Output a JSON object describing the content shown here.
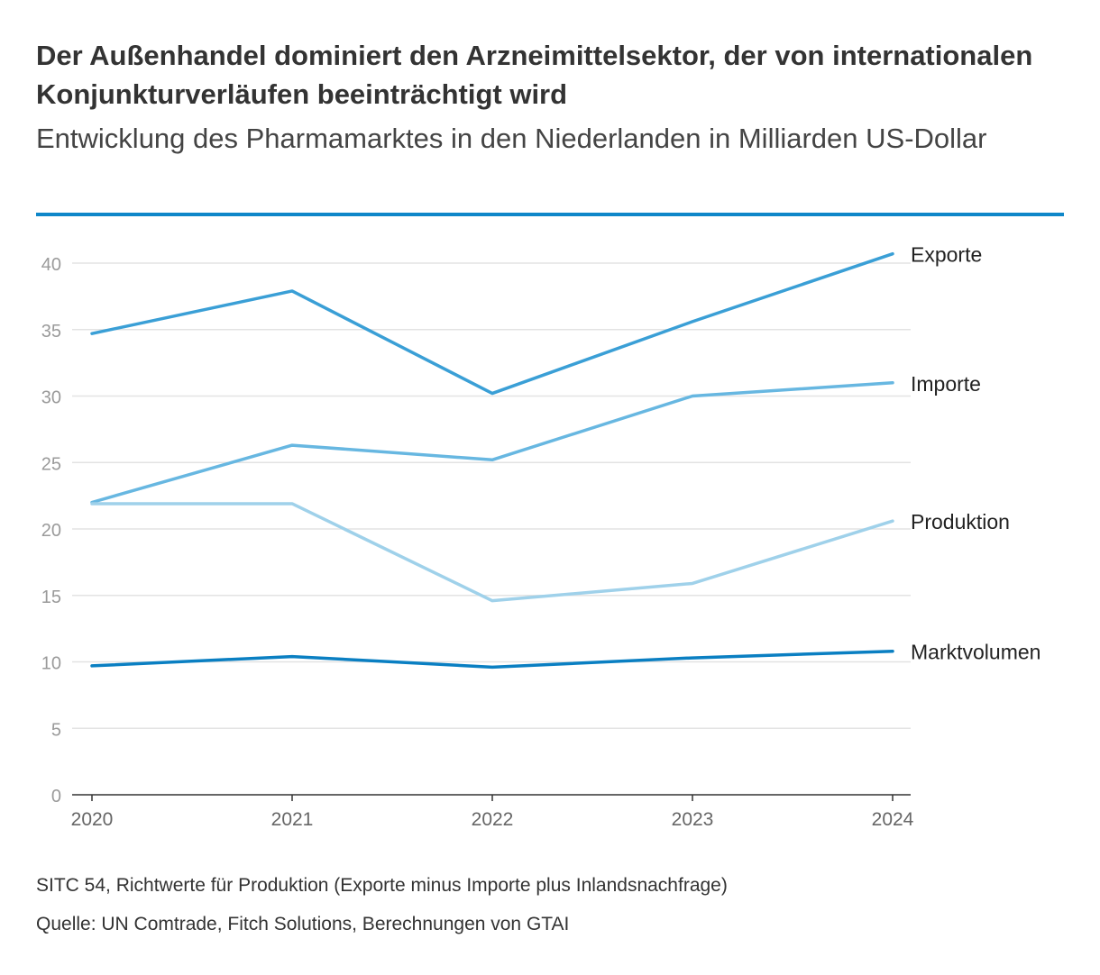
{
  "header": {
    "title": "Der Außenhandel dominiert den Arzneimittelsektor, der von internationalen Konjunkturverläufen beeinträchtigt wird",
    "subtitle": "Entwicklung des Pharmamarktes in den Niederlanden in Milliarden US-Dollar"
  },
  "chart_data": {
    "type": "line",
    "title": "Der Außenhandel dominiert den Arzneimittelsektor, der von internationalen Konjunkturverläufen beeinträchtigt wird",
    "subtitle": "Entwicklung des Pharmamarktes in den Niederlanden in Milliarden US-Dollar",
    "xlabel": "",
    "ylabel": "",
    "x": [
      "2020",
      "2021",
      "2022",
      "2023",
      "2024"
    ],
    "ylim": [
      0,
      40
    ],
    "yticks": [
      0,
      5,
      10,
      15,
      20,
      25,
      30,
      35,
      40
    ],
    "grid": true,
    "legend": "direct labels at line ends (right)",
    "series": [
      {
        "name": "Exporte",
        "color": "#3a9fd6",
        "values": [
          34.7,
          37.9,
          30.2,
          35.6,
          40.7
        ]
      },
      {
        "name": "Importe",
        "color": "#67b7e1",
        "values": [
          22.0,
          26.3,
          25.2,
          30.0,
          31.0
        ]
      },
      {
        "name": "Produktion",
        "color": "#9fd1ea",
        "values": [
          21.9,
          21.9,
          14.6,
          15.9,
          20.6
        ]
      },
      {
        "name": "Marktvolumen",
        "color": "#0a7fc2",
        "values": [
          9.7,
          10.4,
          9.6,
          10.3,
          10.8
        ]
      }
    ]
  },
  "footer": {
    "note": "SITC 54, Richtwerte für Produktion (Exporte minus Importe plus Inlandsnachfrage)",
    "source": "Quelle: UN Comtrade, Fitch Solutions, Berechnungen von GTAI"
  }
}
